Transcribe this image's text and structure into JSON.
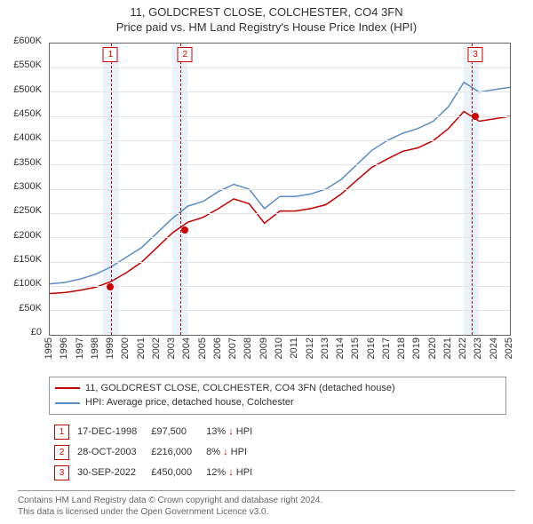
{
  "title": {
    "line1": "11, GOLDCREST CLOSE, COLCHESTER, CO4 3FN",
    "line2": "Price paid vs. HM Land Registry's House Price Index (HPI)"
  },
  "chart": {
    "type": "line",
    "x_years": [
      1995,
      1996,
      1997,
      1998,
      1999,
      2000,
      2001,
      2002,
      2003,
      2004,
      2005,
      2006,
      2007,
      2008,
      2009,
      2010,
      2011,
      2012,
      2013,
      2014,
      2015,
      2016,
      2017,
      2018,
      2019,
      2020,
      2021,
      2022,
      2023,
      2024,
      2025
    ],
    "x_range": [
      1995,
      2025
    ],
    "ylim": [
      0,
      600000
    ],
    "ytick_step": 50000,
    "ytick_labels": [
      "£0",
      "£50K",
      "£100K",
      "£150K",
      "£200K",
      "£250K",
      "£300K",
      "£350K",
      "£400K",
      "£450K",
      "£500K",
      "£550K",
      "£600K"
    ],
    "background_color": "#ffffff",
    "grid_color": "#e5e5e5",
    "band_color": "#eaf2fa",
    "bands": [
      [
        1998.5,
        1999.5
      ],
      [
        2003.0,
        2004.0
      ],
      [
        2022.0,
        2023.0
      ]
    ],
    "band_dash_color": "#cc0000",
    "series": [
      {
        "name": "hpi",
        "label": "HPI: Average price, detached house, Colchester",
        "color": "#5b8ec4",
        "line_width": 1.5,
        "x": [
          1995,
          1996,
          1997,
          1998,
          1999,
          2000,
          2001,
          2002,
          2003,
          2004,
          2005,
          2006,
          2007,
          2008,
          2009,
          2010,
          2011,
          2012,
          2013,
          2014,
          2015,
          2016,
          2017,
          2018,
          2019,
          2020,
          2021,
          2022,
          2023,
          2024,
          2025
        ],
        "y": [
          105000,
          108000,
          115000,
          125000,
          140000,
          160000,
          180000,
          210000,
          240000,
          265000,
          275000,
          295000,
          310000,
          300000,
          260000,
          285000,
          285000,
          290000,
          300000,
          320000,
          350000,
          380000,
          400000,
          415000,
          425000,
          440000,
          470000,
          520000,
          500000,
          505000,
          510000
        ]
      },
      {
        "name": "property",
        "label": "11, GOLDCREST CLOSE, COLCHESTER, CO4 3FN (detached house)",
        "color": "#c30000",
        "line_width": 1.5,
        "x": [
          1995,
          1996,
          1997,
          1998,
          1999,
          2000,
          2001,
          2002,
          2003,
          2004,
          2005,
          2006,
          2007,
          2008,
          2009,
          2010,
          2011,
          2012,
          2013,
          2014,
          2015,
          2016,
          2017,
          2018,
          2019,
          2020,
          2021,
          2022,
          2023,
          2024,
          2025
        ],
        "y": [
          85000,
          87000,
          92000,
          98000,
          110000,
          128000,
          150000,
          180000,
          210000,
          232000,
          242000,
          260000,
          280000,
          270000,
          230000,
          255000,
          255000,
          260000,
          268000,
          290000,
          318000,
          345000,
          362000,
          378000,
          385000,
          400000,
          425000,
          460000,
          440000,
          445000,
          450000
        ]
      }
    ],
    "markers": [
      {
        "idx": "1",
        "year": 1998.96,
        "value": 97500
      },
      {
        "idx": "2",
        "year": 2003.82,
        "value": 216000
      },
      {
        "idx": "3",
        "year": 2022.75,
        "value": 450000
      }
    ],
    "marker_color": "#cc0000",
    "title_fontsize": 13,
    "axis_fontsize": 11
  },
  "legend": {
    "items": [
      {
        "color": "#c30000",
        "label": "11, GOLDCREST CLOSE, COLCHESTER, CO4 3FN (detached house)"
      },
      {
        "color": "#5b8ec4",
        "label": "HPI: Average price, detached house, Colchester"
      }
    ]
  },
  "sales": [
    {
      "idx": "1",
      "date": "17-DEC-1998",
      "price": "£97,500",
      "pct": "13%",
      "arrow": "↓",
      "note": "HPI"
    },
    {
      "idx": "2",
      "date": "28-OCT-2003",
      "price": "£216,000",
      "pct": "8%",
      "arrow": "↓",
      "note": "HPI"
    },
    {
      "idx": "3",
      "date": "30-SEP-2022",
      "price": "£450,000",
      "pct": "12%",
      "arrow": "↓",
      "note": "HPI"
    }
  ],
  "footer": {
    "line1": "Contains HM Land Registry data © Crown copyright and database right 2024.",
    "line2": "This data is licensed under the Open Government Licence v3.0."
  }
}
